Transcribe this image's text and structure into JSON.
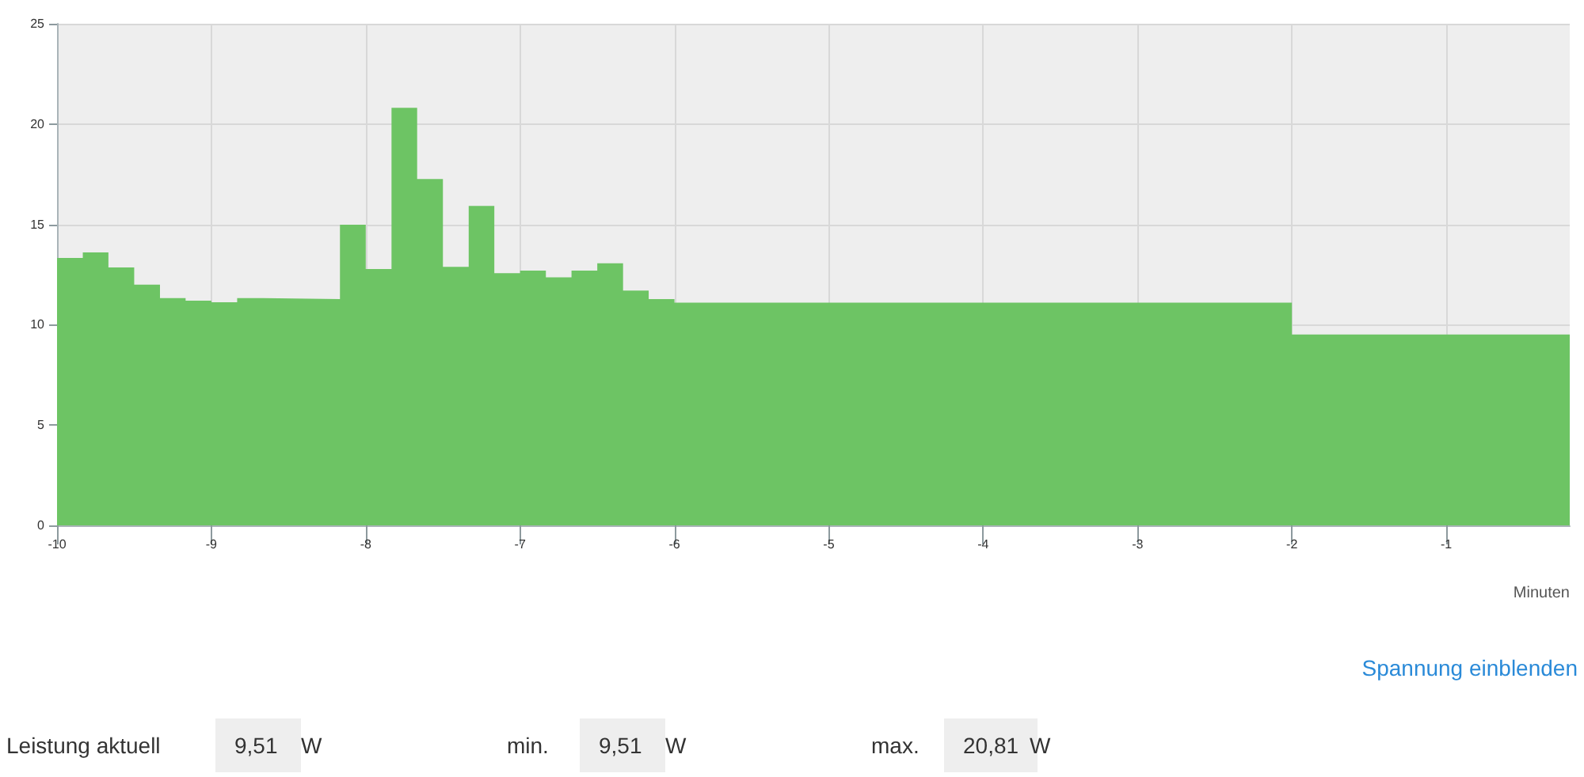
{
  "chart_data": {
    "type": "area",
    "xlabel": "Minuten",
    "x": [
      -10,
      -9.833,
      -9.833,
      -9.667,
      -9.667,
      -9.5,
      -9.5,
      -9.333,
      -9.333,
      -9.167,
      -9.167,
      -9,
      -9,
      -8.833,
      -8.833,
      -8.667,
      -8.667,
      -8.167,
      -8.167,
      -8,
      -8,
      -7.833,
      -7.833,
      -7.667,
      -7.667,
      -7.5,
      -7.5,
      -7.333,
      -7.333,
      -7.167,
      -7.167,
      -7,
      -7,
      -6.833,
      -6.833,
      -6.667,
      -6.667,
      -6.5,
      -6.5,
      -6.333,
      -6.333,
      -6.167,
      -6.167,
      -6,
      -6,
      -2,
      -2,
      -0.2
    ],
    "series": [
      {
        "color": "#6dc464",
        "values": [
          13.33,
          13.33,
          13.6,
          13.6,
          12.85,
          12.85,
          12.0,
          12.0,
          11.33,
          11.33,
          11.2,
          11.2,
          11.12,
          11.12,
          11.33,
          11.33,
          11.28,
          11.28,
          14.98,
          14.98,
          12.78,
          12.78,
          20.81,
          20.81,
          17.26,
          17.26,
          12.88,
          12.88,
          15.92,
          15.92,
          12.57,
          12.57,
          12.7,
          12.7,
          12.36,
          12.36,
          12.7,
          12.7,
          13.06,
          13.06,
          11.7,
          11.7,
          11.28,
          11.28,
          11.1,
          11.1,
          9.51,
          9.51
        ]
      }
    ],
    "xlim": [
      -10,
      -0.2
    ],
    "xticks": [
      -10,
      -9,
      -8,
      -7,
      -6,
      -5,
      -4,
      -3,
      -2,
      -1
    ],
    "ylim": [
      0,
      25
    ],
    "yticks": [
      0,
      5,
      10,
      15,
      20,
      25
    ],
    "grid": true,
    "marker": "none",
    "annotations": [
      "Spannung einblenden",
      "Leistung aktuell",
      "9,51",
      "W",
      "min.",
      "9,51",
      "W",
      "max.",
      "20,81",
      "W"
    ]
  }
}
